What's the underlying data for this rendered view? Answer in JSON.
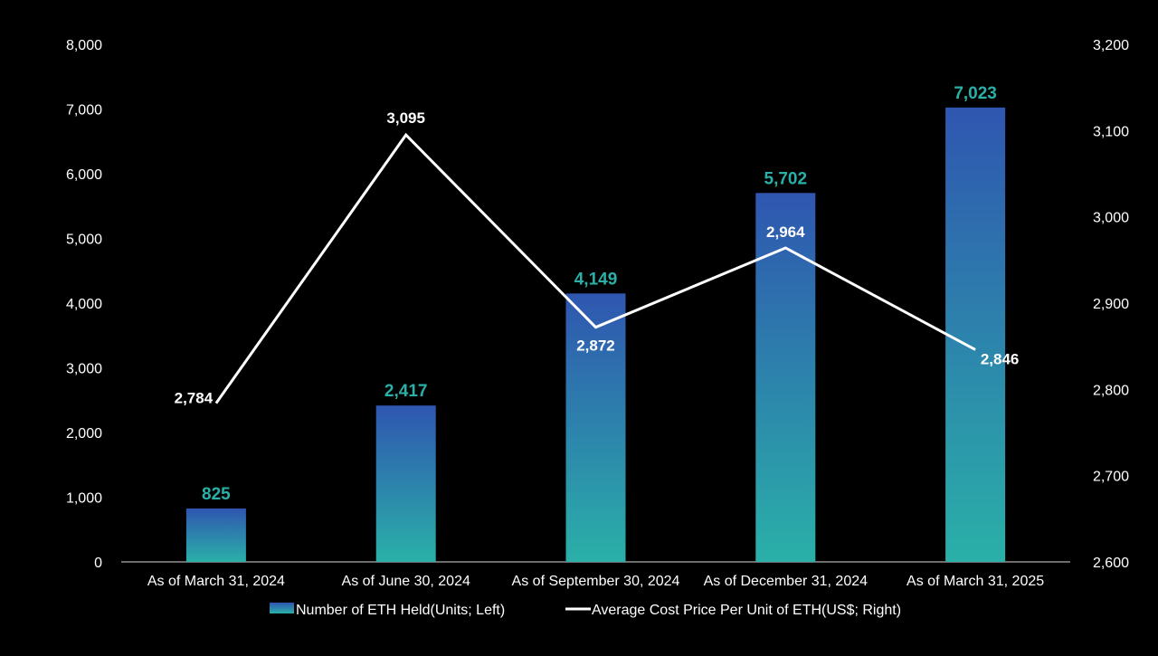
{
  "chart_data": {
    "type": "bar",
    "categories": [
      "As of March 31, 2024",
      "As of June 30, 2024",
      "As of September 30, 2024",
      "As of December 31, 2024",
      "As of March 31, 2025"
    ],
    "series": [
      {
        "name": "Number of ETH Held(Units; Left)",
        "type": "bar",
        "axis": "left",
        "values": [
          825,
          2417,
          4149,
          5702,
          7023
        ],
        "labels": [
          "825",
          "2,417",
          "4,149",
          "5,702",
          "7,023"
        ]
      },
      {
        "name": "Average Cost Price Per Unit of ETH(US$; Right)",
        "type": "line",
        "axis": "right",
        "values": [
          2784,
          3095,
          2872,
          2964,
          2846
        ],
        "labels": [
          "2,784",
          "3,095",
          "2,872",
          "2,964",
          "2,846"
        ]
      }
    ],
    "y_left": {
      "min": 0,
      "max": 8000,
      "ticks": [
        0,
        1000,
        2000,
        3000,
        4000,
        5000,
        6000,
        7000,
        8000
      ],
      "tick_labels": [
        "0",
        "1,000",
        "2,000",
        "3,000",
        "4,000",
        "5,000",
        "6,000",
        "7,000",
        "8,000"
      ]
    },
    "y_right": {
      "min": 2600,
      "max": 3200,
      "ticks": [
        2600,
        2700,
        2800,
        2900,
        3000,
        3100,
        3200
      ],
      "tick_labels": [
        "2,600",
        "2,700",
        "2,800",
        "2,900",
        "3,000",
        "3,100",
        "3,200"
      ]
    },
    "grid": false,
    "legend": "bottom-center",
    "colors": {
      "background": "#000000",
      "bar_top": "#2f56b0",
      "bar_bottom": "#2ab0a8",
      "bar_label": "#2ab0a8",
      "line": "#ffffff",
      "text": "#ffffff",
      "axis": "#d9d9d9"
    }
  }
}
